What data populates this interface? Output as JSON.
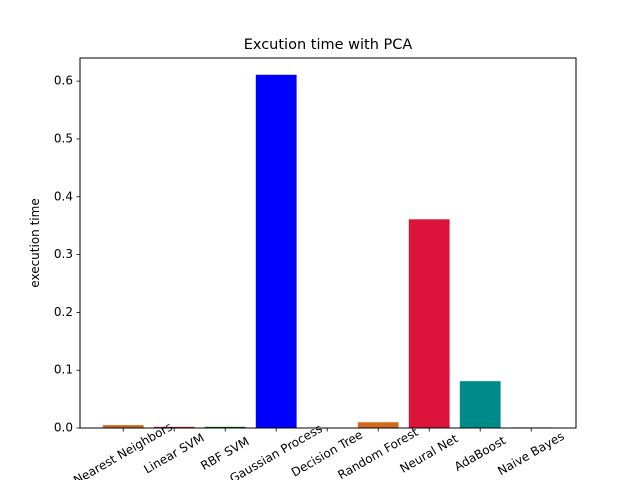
{
  "chart_data": {
    "type": "bar",
    "title": "Excution time with PCA",
    "xlabel": "",
    "ylabel": "execution time",
    "ylim": [
      0,
      0.64
    ],
    "yticks": [
      0.0,
      0.1,
      0.2,
      0.3,
      0.4,
      0.5,
      0.6
    ],
    "ytick_labels": [
      "0.0",
      "0.1",
      "0.2",
      "0.3",
      "0.4",
      "0.5",
      "0.6"
    ],
    "categories": [
      "Nearest Neighbors",
      "Linear SVM",
      "RBF SVM",
      "Gaussian Process",
      "Decision Tree",
      "Random Forest",
      "Neural Net",
      "AdaBoost",
      "Naive Bayes"
    ],
    "values": [
      0.005,
      0.002,
      0.002,
      0.611,
      0.0005,
      0.01,
      0.361,
      0.081,
      0.001
    ],
    "colors": [
      "#d2691e",
      "#b22222",
      "#006400",
      "#0000ff",
      "#a0522d",
      "#d2691e",
      "#dc143c",
      "#008b8b",
      "#556b2f"
    ],
    "xtick_rotation_deg": 30,
    "grid": false,
    "legend": "none"
  }
}
